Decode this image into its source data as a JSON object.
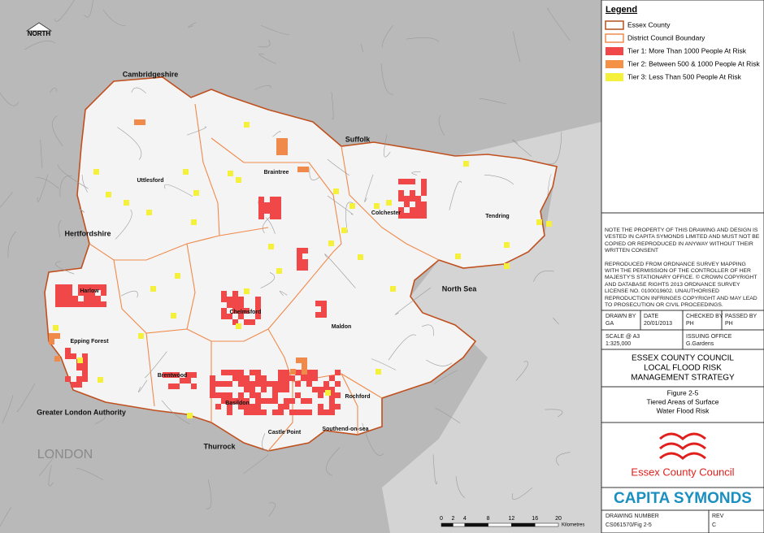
{
  "map": {
    "north_label": "NORTH",
    "places": [
      "Cambridgeshire",
      "Suffolk",
      "Hertfordshire",
      "Uttlesford",
      "Braintree",
      "Colchester",
      "Tendring",
      "Harlow",
      "Epping Forest",
      "Chelmsford",
      "Maldon",
      "Brentwood",
      "Basildon",
      "Rochford",
      "Southend-on-sea",
      "Castle Point",
      "Thurrock",
      "Greater London Authority",
      "North Sea",
      "LONDON"
    ],
    "scale_bar": {
      "ticks": [
        0,
        2,
        4,
        8,
        12,
        16,
        20
      ],
      "unit": "Kilometres"
    }
  },
  "legend": {
    "title": "Legend",
    "items": [
      {
        "label": "Essex County",
        "color": "#b5501e",
        "style": "outline"
      },
      {
        "label": "District Council Boundary",
        "color": "#f08a4b",
        "style": "outline"
      },
      {
        "label": "Tier 1: More Than 1000 People At Risk",
        "color": "#f04848",
        "style": "fill"
      },
      {
        "label": "Tier 2: Between 500 & 1000 People At Risk",
        "color": "#f59047",
        "style": "fill"
      },
      {
        "label": "Tier 3: Less Than 500 People At Risk",
        "color": "#f5f03a",
        "style": "fill"
      }
    ]
  },
  "notes": [
    "NOTE THE PROPERTY OF THIS DRAWING AND DESIGN IS VESTED IN CAPITA SYMONDS LIMITED AND MUST NOT BE COPIED OR REPRODUCED IN ANYWAY WITHOUT THEIR WRITTEN CONSENT",
    "REPRODUCED FROM ORDNANCE SURVEY MAPPING WITH THE PERMISSION OF THE CONTROLLER OF HER MAJESTY'S STATIONARY OFFICE. © CROWN COPYRIGHT AND DATABASE RIGHTS 2013 ORDNANCE SURVEY LICENSE NO. 0100019602. UNAUTHORISED REPRODUCTION INFRINGES COPYRIGHT AND MAY LEAD TO PROSECUTION OR CIVIL PROCEEDINGS."
  ],
  "title_block": {
    "drawn_by": {
      "label": "DRAWN BY",
      "value": "GA"
    },
    "date": {
      "label": "DATE",
      "value": "20/01/2013"
    },
    "checked_by": {
      "label": "CHECKED BY",
      "value": "PH"
    },
    "passed_by": {
      "label": "PASSED BY",
      "value": "PH"
    },
    "scale": {
      "label": "SCALE @ A3",
      "value": "1:325,000"
    },
    "issuing_office": {
      "label": "ISSUING OFFICE",
      "value": "G.Gardens"
    },
    "title": [
      "ESSEX COUNTY COUNCIL",
      "LOCAL FLOOD RISK",
      "MANAGEMENT STRATEGY"
    ],
    "figure": "Figure 2-5",
    "figure_title": [
      "Tiered Areas of Surface",
      "Water Flood Risk"
    ],
    "client": "Essex County Council",
    "consultant": "CAPITA SYMONDS",
    "drawing_number": {
      "label": "DRAWING NUMBER",
      "value": "CS061570/Fig 2-5"
    },
    "rev": {
      "label": "REV",
      "value": "C"
    }
  }
}
